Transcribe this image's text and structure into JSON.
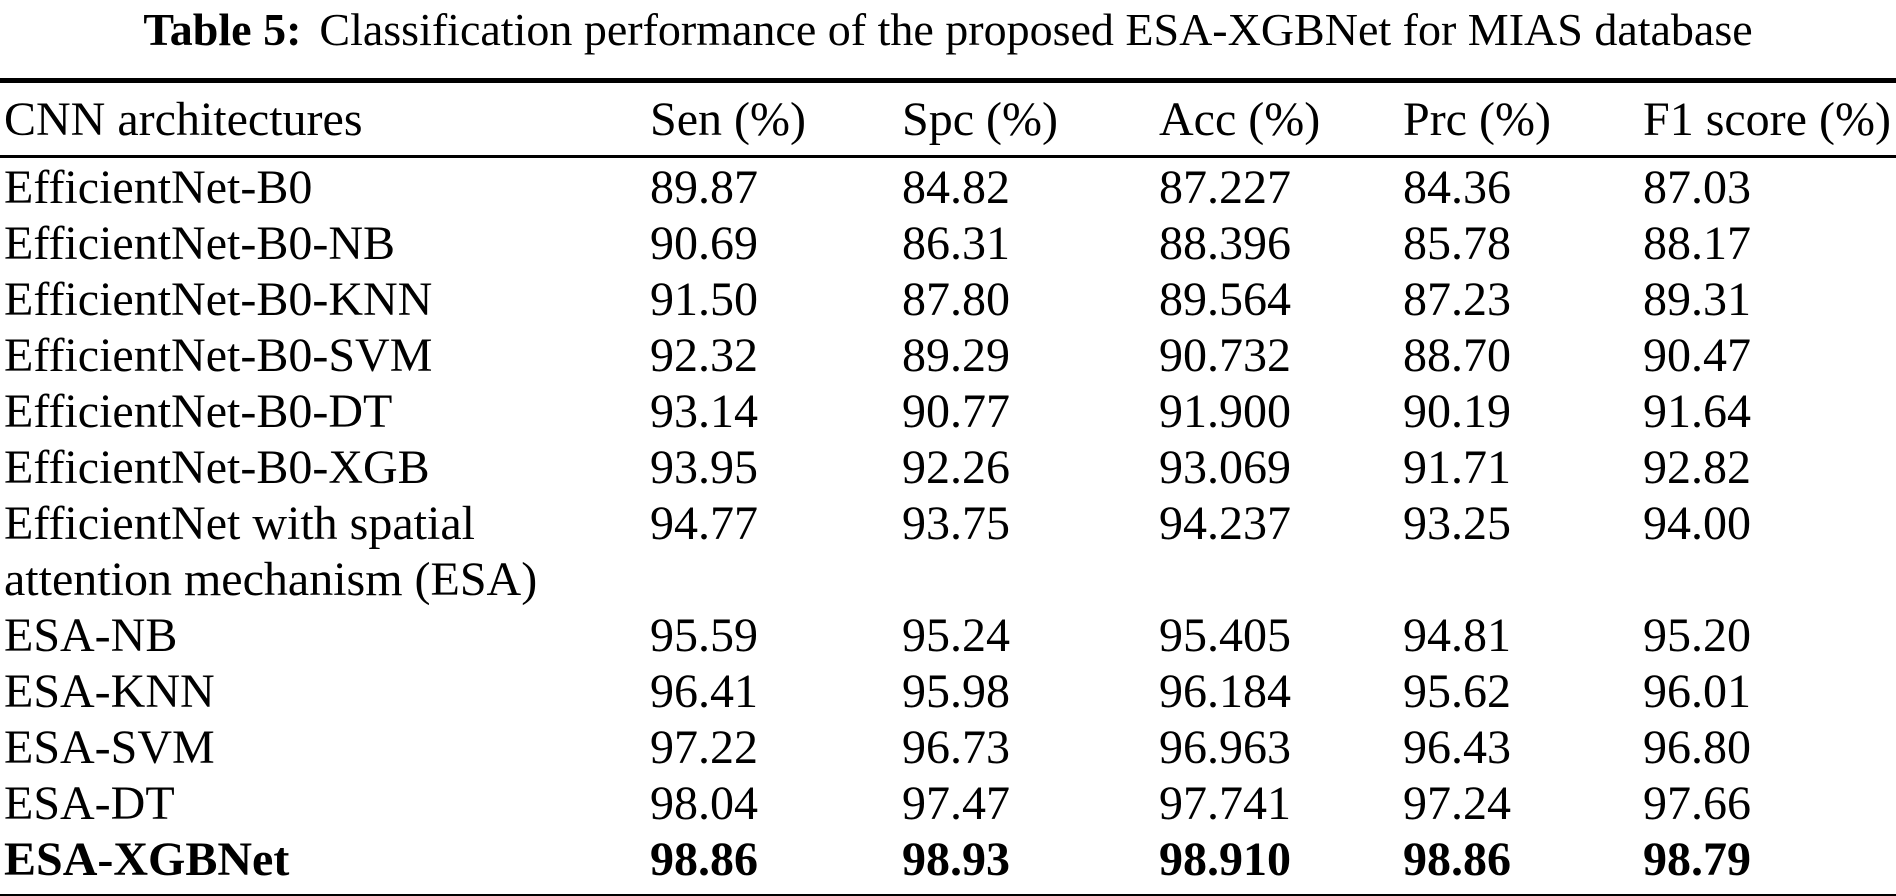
{
  "table": {
    "caption": {
      "label": "Table 5:",
      "text": "Classification performance of the proposed ESA-XGBNet for MIAS database"
    },
    "columns": {
      "architecture": "CNN architectures",
      "sen": "Sen (%)",
      "spc": "Spc (%)",
      "acc": "Acc (%)",
      "prc": "Prc (%)",
      "f1": "F1 score (%)"
    },
    "rows": [
      {
        "architecture": "EfficientNet-B0",
        "sen": "89.87",
        "spc": "84.82",
        "acc": "87.227",
        "prc": "84.36",
        "f1": "87.03",
        "bold": false
      },
      {
        "architecture": "EfficientNet-B0-NB",
        "sen": "90.69",
        "spc": "86.31",
        "acc": "88.396",
        "prc": "85.78",
        "f1": "88.17",
        "bold": false
      },
      {
        "architecture": "EfficientNet-B0-KNN",
        "sen": "91.50",
        "spc": "87.80",
        "acc": "89.564",
        "prc": "87.23",
        "f1": "89.31",
        "bold": false
      },
      {
        "architecture": "EfficientNet-B0-SVM",
        "sen": "92.32",
        "spc": "89.29",
        "acc": "90.732",
        "prc": "88.70",
        "f1": "90.47",
        "bold": false
      },
      {
        "architecture": "EfficientNet-B0-DT",
        "sen": "93.14",
        "spc": "90.77",
        "acc": "91.900",
        "prc": "90.19",
        "f1": "91.64",
        "bold": false
      },
      {
        "architecture": "EfficientNet-B0-XGB",
        "sen": "93.95",
        "spc": "92.26",
        "acc": "93.069",
        "prc": "91.71",
        "f1": "92.82",
        "bold": false
      },
      {
        "architecture": "EfficientNet with spatial\nattention mechanism (ESA)",
        "sen": "94.77",
        "spc": "93.75",
        "acc": "94.237",
        "prc": "93.25",
        "f1": "94.00",
        "bold": false
      },
      {
        "architecture": "ESA-NB",
        "sen": "95.59",
        "spc": "95.24",
        "acc": "95.405",
        "prc": "94.81",
        "f1": "95.20",
        "bold": false
      },
      {
        "architecture": "ESA-KNN",
        "sen": "96.41",
        "spc": "95.98",
        "acc": "96.184",
        "prc": "95.62",
        "f1": "96.01",
        "bold": false
      },
      {
        "architecture": "ESA-SVM",
        "sen": "97.22",
        "spc": "96.73",
        "acc": "96.963",
        "prc": "96.43",
        "f1": "96.80",
        "bold": false
      },
      {
        "architecture": "ESA-DT",
        "sen": "98.04",
        "spc": "97.47",
        "acc": "97.741",
        "prc": "97.24",
        "f1": "97.66",
        "bold": false
      },
      {
        "architecture": "ESA-XGBNet",
        "sen": "98.86",
        "spc": "98.93",
        "acc": "98.910",
        "prc": "98.86",
        "f1": "98.79",
        "bold": true
      }
    ]
  }
}
